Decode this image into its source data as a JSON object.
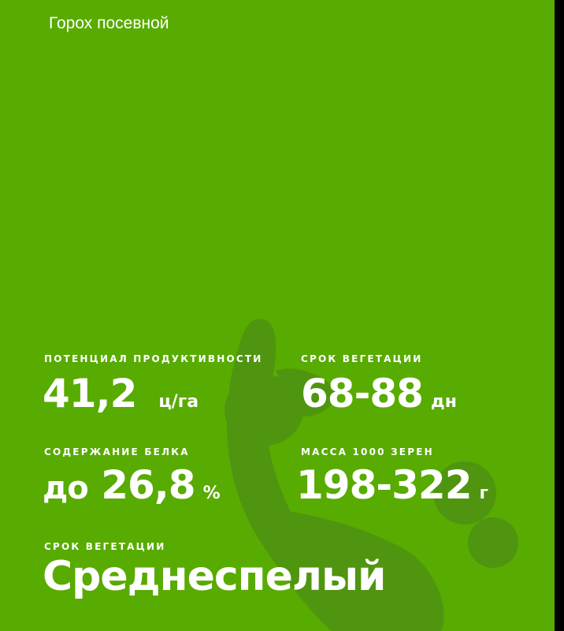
{
  "header": {
    "title": "Горох посевной"
  },
  "stats": [
    {
      "label": "ПОТЕНЦИАЛ ПРОДУКТИВНОСТИ",
      "value": "41,2",
      "unit": "ц/га"
    },
    {
      "label": "СРОК ВЕГЕТАЦИИ",
      "value": "68-88",
      "unit": "дн"
    },
    {
      "label": "СОДЕРЖАНИЕ БЕЛКА",
      "prefix": "до",
      "value": "26,8",
      "unit": "%"
    },
    {
      "label": "МАССА 1000 ЗЕРЕН",
      "value": "198-322",
      "unit": "г"
    }
  ],
  "maturity": {
    "label": "СРОК ВЕГЕТАЦИИ",
    "value": "Среднеспелый"
  },
  "colors": {
    "background": "#58ab00",
    "shape": "#4f9510",
    "text": "#ffffff"
  }
}
